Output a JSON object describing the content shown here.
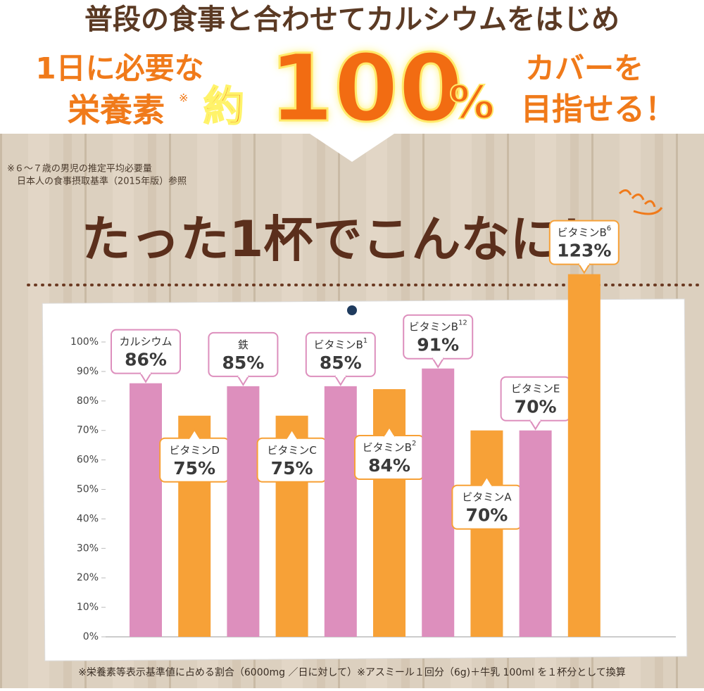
{
  "header": {
    "headline": "普段の食事と合わせてカルシウムをはじめ",
    "left_line1": "1日に必要な",
    "left_line2": "栄養素",
    "left_mark": "※",
    "approx": "約",
    "big_number": "100",
    "big_unit": "%",
    "right_line1": "カバーを",
    "right_line2": "目指せる！",
    "note_line1": "※６～７歳の男児の推定平均必要量",
    "note_line2": "日本人の食事摂取基準（2015年版）参照"
  },
  "slogan": "たった1杯でこんなに！",
  "chart_data": {
    "type": "bar",
    "categories": [
      "カルシウム",
      "ビタミンD",
      "鉄",
      "ビタミンC",
      "ビタミンB",
      "ビタミンB",
      "ビタミンB",
      "ビタミンA",
      "ビタミンE",
      "ビタミンB"
    ],
    "category_superscripts": [
      null,
      null,
      null,
      null,
      "1",
      "2",
      "12",
      null,
      null,
      "6"
    ],
    "values": [
      86,
      75,
      85,
      75,
      85,
      84,
      91,
      70,
      70,
      123
    ],
    "value_labels": [
      "86%",
      "75%",
      "85%",
      "75%",
      "85%",
      "84%",
      "91%",
      "70%",
      "70%",
      "123%"
    ],
    "colors": [
      "#dd8fbd",
      "#f7a137",
      "#dd8fbd",
      "#f7a137",
      "#dd8fbd",
      "#f7a137",
      "#dd8fbd",
      "#f7a137",
      "#dd8fbd",
      "#f7a137"
    ],
    "ylim": [
      0,
      100
    ],
    "yticks": [
      {
        "value": 0,
        "label": "0%"
      },
      {
        "value": 10,
        "label": "10%"
      },
      {
        "value": 20,
        "label": "20%"
      },
      {
        "value": 30,
        "label": "30%"
      },
      {
        "value": 40,
        "label": "40%"
      },
      {
        "value": 50,
        "label": "50%"
      },
      {
        "value": 60,
        "label": "60%"
      },
      {
        "value": 70,
        "label": "70%"
      },
      {
        "value": 80,
        "label": "80%"
      },
      {
        "value": 90,
        "label": "90%"
      },
      {
        "value": 100,
        "label": "100%"
      }
    ],
    "grid": false
  },
  "footnote": "※栄養素等表示基準値に占める割合（6000mg ／日に対して）※アスミール１回分（6g)＋牛乳 100ml を１杯分として換算"
}
